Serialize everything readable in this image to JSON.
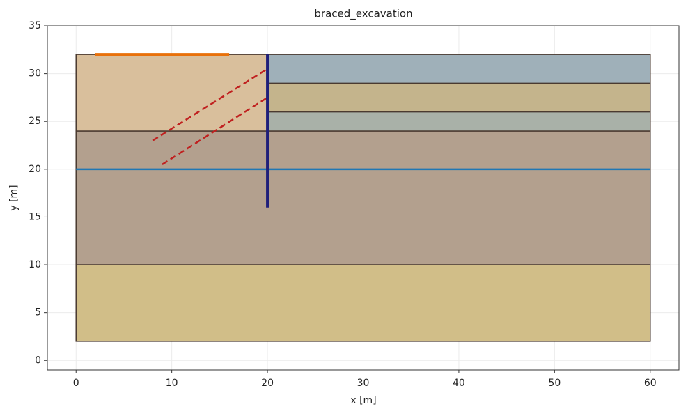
{
  "chart_data": {
    "type": "geometry",
    "title": "braced_excavation",
    "xlabel": "x [m]",
    "ylabel": "y [m]",
    "xlim": [
      -3,
      63
    ],
    "ylim": [
      -1,
      35
    ],
    "xticks": [
      0,
      10,
      20,
      30,
      40,
      50,
      60
    ],
    "yticks": [
      0,
      5,
      10,
      15,
      20,
      25,
      30,
      35
    ],
    "grid": true,
    "polygons": [
      {
        "color": "#d1be88",
        "x": [
          0,
          60,
          60,
          0
        ],
        "y": [
          2,
          2,
          10,
          10
        ]
      },
      {
        "color": "#b3a08e",
        "x": [
          0,
          60,
          60,
          0
        ],
        "y": [
          10,
          10,
          24,
          24
        ]
      },
      {
        "color": "#d9bf9c",
        "x": [
          0,
          20,
          20,
          0
        ],
        "y": [
          24,
          24,
          32,
          32
        ]
      },
      {
        "color": "#a9b1a8",
        "x": [
          20,
          60,
          60,
          20
        ],
        "y": [
          24,
          24,
          26,
          26
        ]
      },
      {
        "color": "#c4b48c",
        "x": [
          20,
          60,
          60,
          20
        ],
        "y": [
          26,
          26,
          29,
          29
        ]
      },
      {
        "color": "#9fb0b9",
        "x": [
          20,
          60,
          60,
          20
        ],
        "y": [
          29,
          29,
          32,
          32
        ]
      }
    ],
    "lines": [
      {
        "color": "#1f77b4",
        "style": "solid",
        "x": [
          0,
          60
        ],
        "y": [
          20,
          20
        ]
      },
      {
        "color": "#c0201f",
        "style": "dashed",
        "x": [
          8,
          20
        ],
        "y": [
          23,
          30.5
        ]
      },
      {
        "color": "#c0201f",
        "style": "dashed",
        "x": [
          9,
          20
        ],
        "y": [
          20.5,
          27.5
        ]
      },
      {
        "color": "#1f1f7a",
        "style": "thick",
        "x": [
          20,
          20
        ],
        "y": [
          16,
          32
        ]
      },
      {
        "color": "#e8700a",
        "style": "thick",
        "x": [
          2,
          16
        ],
        "y": [
          32,
          32
        ]
      }
    ]
  }
}
